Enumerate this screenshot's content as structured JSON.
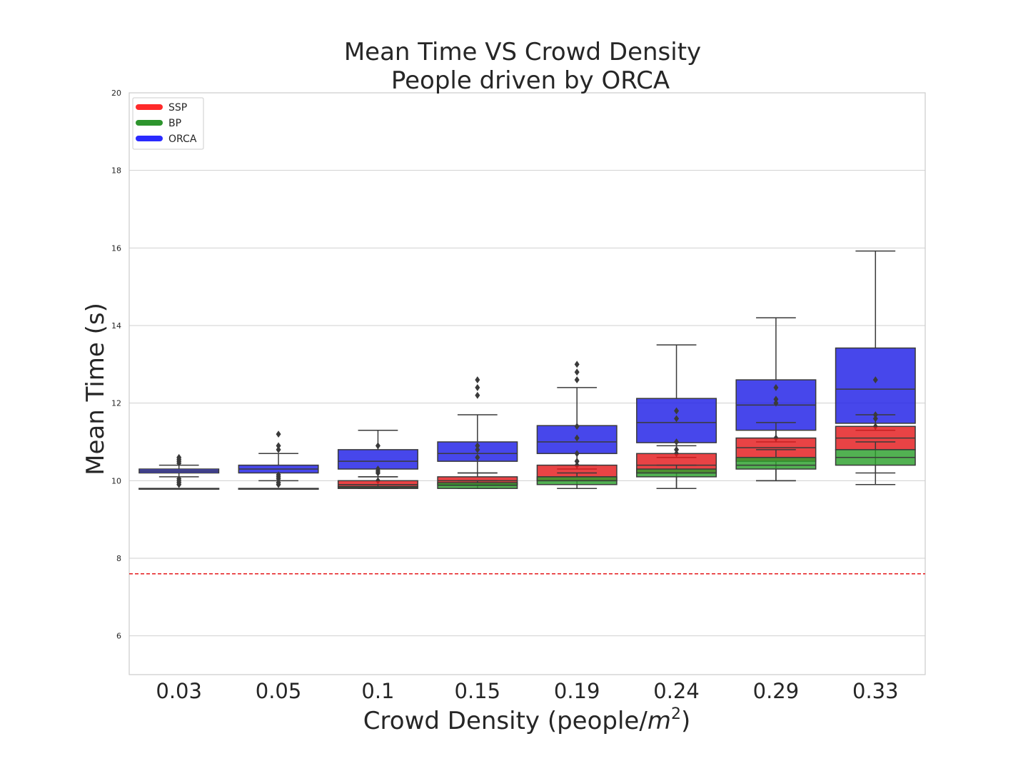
{
  "chart_data": {
    "type": "box",
    "title_line1": "Mean Time VS Crowd Density",
    "title_line2": "People driven by ORCA",
    "xlabel_main": "Crowd Density (people/",
    "xlabel_var": "m",
    "xlabel_sup": "2",
    "xlabel_close": ")",
    "ylabel": "Mean Time (s)",
    "ylim": [
      5,
      20
    ],
    "yticks": [
      6,
      8,
      10,
      12,
      14,
      16,
      18,
      20
    ],
    "categories": [
      "0.03",
      "0.05",
      "0.1",
      "0.15",
      "0.19",
      "0.24",
      "0.29",
      "0.33"
    ],
    "reference_line": {
      "y": 7.6,
      "color": "#e41a1c",
      "style": "dashed"
    },
    "legend": {
      "location": "upper-left",
      "entries": [
        "SSP",
        "BP",
        "ORCA"
      ]
    },
    "series": [
      {
        "name": "ORCA",
        "color": "#1f1fe6",
        "boxes": [
          {
            "q1": 10.2,
            "median": 10.25,
            "q3": 10.3,
            "whislo": 10.1,
            "whishi": 10.4,
            "fliers": [
              9.9,
              9.95,
              10.0,
              10.05,
              10.45,
              10.5,
              10.55,
              10.6
            ]
          },
          {
            "q1": 10.2,
            "median": 10.3,
            "q3": 10.4,
            "whislo": 10.0,
            "whishi": 10.7,
            "fliers": [
              9.9,
              9.95,
              10.05,
              10.1,
              10.15,
              10.8,
              10.9,
              11.2
            ]
          },
          {
            "q1": 10.3,
            "median": 10.5,
            "q3": 10.8,
            "whislo": 10.1,
            "whishi": 11.3,
            "fliers": [
              10.0,
              10.2,
              10.25,
              10.3,
              10.9
            ]
          },
          {
            "q1": 10.5,
            "median": 10.7,
            "q3": 11.0,
            "whislo": 10.2,
            "whishi": 11.7,
            "fliers": [
              10.6,
              10.8,
              10.9,
              12.2,
              12.4,
              12.6
            ]
          },
          {
            "q1": 10.7,
            "median": 11.0,
            "q3": 11.42,
            "whislo": 10.3,
            "whishi": 12.4,
            "fliers": [
              10.4,
              10.5,
              10.7,
              11.1,
              11.4,
              12.6,
              12.8,
              13.0
            ]
          },
          {
            "q1": 10.98,
            "median": 11.5,
            "q3": 12.12,
            "whislo": 10.6,
            "whishi": 13.5,
            "fliers": [
              10.7,
              10.8,
              11.0,
              11.6,
              11.8
            ]
          },
          {
            "q1": 11.3,
            "median": 11.95,
            "q3": 12.6,
            "whislo": 11.0,
            "whishi": 14.2,
            "fliers": [
              11.1,
              12.0,
              12.1,
              12.4
            ]
          },
          {
            "q1": 11.48,
            "median": 12.36,
            "q3": 13.42,
            "whislo": 11.3,
            "whishi": 15.92,
            "fliers": [
              11.4,
              11.6,
              11.7,
              12.6
            ]
          }
        ]
      },
      {
        "name": "SSP",
        "color": "#e41a1c",
        "boxes": [
          {
            "q1": 9.8,
            "median": 9.8,
            "q3": 9.8,
            "whislo": 9.8,
            "whishi": 9.8,
            "fliers": []
          },
          {
            "q1": 9.8,
            "median": 9.8,
            "q3": 9.8,
            "whislo": 9.8,
            "whishi": 9.8,
            "fliers": []
          },
          {
            "q1": 9.85,
            "median": 9.9,
            "q3": 10.0,
            "whislo": 9.8,
            "whishi": 10.1,
            "fliers": []
          },
          {
            "q1": 9.9,
            "median": 10.0,
            "q3": 10.1,
            "whislo": 9.8,
            "whishi": 10.2,
            "fliers": []
          },
          {
            "q1": 10.0,
            "median": 10.1,
            "q3": 10.4,
            "whislo": 9.8,
            "whishi": 10.4,
            "fliers": []
          },
          {
            "q1": 10.2,
            "median": 10.4,
            "q3": 10.7,
            "whislo": 9.8,
            "whishi": 10.9,
            "fliers": []
          },
          {
            "q1": 10.5,
            "median": 10.85,
            "q3": 11.1,
            "whislo": 10.0,
            "whishi": 11.5,
            "fliers": []
          },
          {
            "q1": 10.8,
            "median": 11.1,
            "q3": 11.4,
            "whislo": 10.2,
            "whishi": 11.7,
            "fliers": []
          }
        ]
      },
      {
        "name": "BP",
        "color": "#2ca02c",
        "boxes": [
          {
            "q1": 9.8,
            "median": 9.8,
            "q3": 9.8,
            "whislo": 9.8,
            "whishi": 9.8,
            "fliers": []
          },
          {
            "q1": 9.8,
            "median": 9.8,
            "q3": 9.8,
            "whislo": 9.8,
            "whishi": 9.8,
            "fliers": []
          },
          {
            "q1": 9.8,
            "median": 9.82,
            "q3": 9.85,
            "whislo": 9.8,
            "whishi": 9.9,
            "fliers": []
          },
          {
            "q1": 9.8,
            "median": 9.88,
            "q3": 9.95,
            "whislo": 9.8,
            "whishi": 10.0,
            "fliers": []
          },
          {
            "q1": 9.9,
            "median": 10.0,
            "q3": 10.1,
            "whislo": 9.8,
            "whishi": 10.2,
            "fliers": []
          },
          {
            "q1": 10.1,
            "median": 10.2,
            "q3": 10.3,
            "whislo": 9.8,
            "whishi": 10.4,
            "fliers": []
          },
          {
            "q1": 10.3,
            "median": 10.4,
            "q3": 10.6,
            "whislo": 10.0,
            "whishi": 10.8,
            "fliers": []
          },
          {
            "q1": 10.4,
            "median": 10.6,
            "q3": 10.8,
            "whislo": 9.9,
            "whishi": 11.0,
            "fliers": []
          }
        ]
      }
    ]
  }
}
